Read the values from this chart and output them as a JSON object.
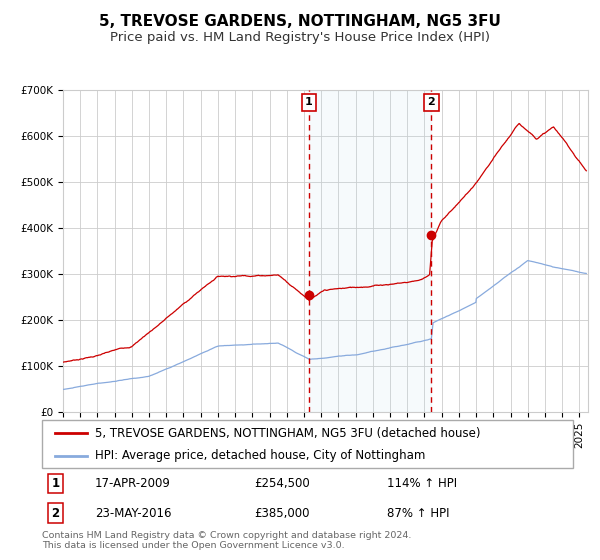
{
  "title": "5, TREVOSE GARDENS, NOTTINGHAM, NG5 3FU",
  "subtitle": "Price paid vs. HM Land Registry's House Price Index (HPI)",
  "ylim": [
    0,
    700000
  ],
  "xlim_start": 1995.0,
  "xlim_end": 2025.5,
  "background_color": "#ffffff",
  "plot_bg_color": "#ffffff",
  "grid_color": "#cccccc",
  "transaction1_date": 2009.29,
  "transaction1_price": 254500,
  "transaction1_label": "1",
  "transaction1_date_str": "17-APR-2009",
  "transaction1_hpi": "114% ↑ HPI",
  "transaction2_date": 2016.4,
  "transaction2_price": 385000,
  "transaction2_label": "2",
  "transaction2_date_str": "23-MAY-2016",
  "transaction2_hpi": "87% ↑ HPI",
  "shade_start": 2009.29,
  "shade_end": 2016.4,
  "red_line_color": "#cc0000",
  "blue_line_color": "#88aadd",
  "legend_red_label": "5, TREVOSE GARDENS, NOTTINGHAM, NG5 3FU (detached house)",
  "legend_blue_label": "HPI: Average price, detached house, City of Nottingham",
  "footer_text": "Contains HM Land Registry data © Crown copyright and database right 2024.\nThis data is licensed under the Open Government Licence v3.0.",
  "title_fontsize": 11,
  "subtitle_fontsize": 9.5,
  "tick_fontsize": 7.5,
  "legend_fontsize": 8.5
}
